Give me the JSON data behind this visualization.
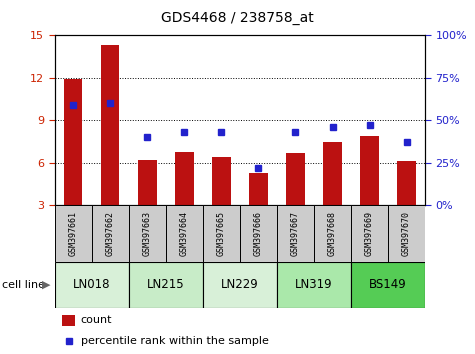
{
  "title": "GDS4468 / 238758_at",
  "samples": [
    "GSM397661",
    "GSM397662",
    "GSM397663",
    "GSM397664",
    "GSM397665",
    "GSM397666",
    "GSM397667",
    "GSM397668",
    "GSM397669",
    "GSM397670"
  ],
  "counts": [
    11.9,
    14.3,
    6.2,
    6.75,
    6.4,
    5.3,
    6.7,
    7.5,
    7.9,
    6.1
  ],
  "percentile": [
    59,
    60,
    40,
    43,
    43,
    22,
    43,
    46,
    47,
    37
  ],
  "cell_lines": [
    {
      "label": "LN018",
      "start": 0,
      "end": 2,
      "color": "#d8f0d8"
    },
    {
      "label": "LN215",
      "start": 2,
      "end": 4,
      "color": "#c8ecc8"
    },
    {
      "label": "LN229",
      "start": 4,
      "end": 6,
      "color": "#d8f0d8"
    },
    {
      "label": "LN319",
      "start": 6,
      "end": 8,
      "color": "#aae8aa"
    },
    {
      "label": "BS149",
      "start": 8,
      "end": 10,
      "color": "#55cc55"
    }
  ],
  "ylim_left": [
    3,
    15
  ],
  "ylim_right": [
    0,
    100
  ],
  "yticks_left": [
    3,
    6,
    9,
    12,
    15
  ],
  "yticks_right": [
    0,
    25,
    50,
    75,
    100
  ],
  "bar_color": "#bb1111",
  "dot_color": "#2222cc",
  "bar_width": 0.5,
  "sample_bg_color": "#cccccc",
  "left_tick_color": "#cc2200",
  "right_tick_color": "#2222cc"
}
